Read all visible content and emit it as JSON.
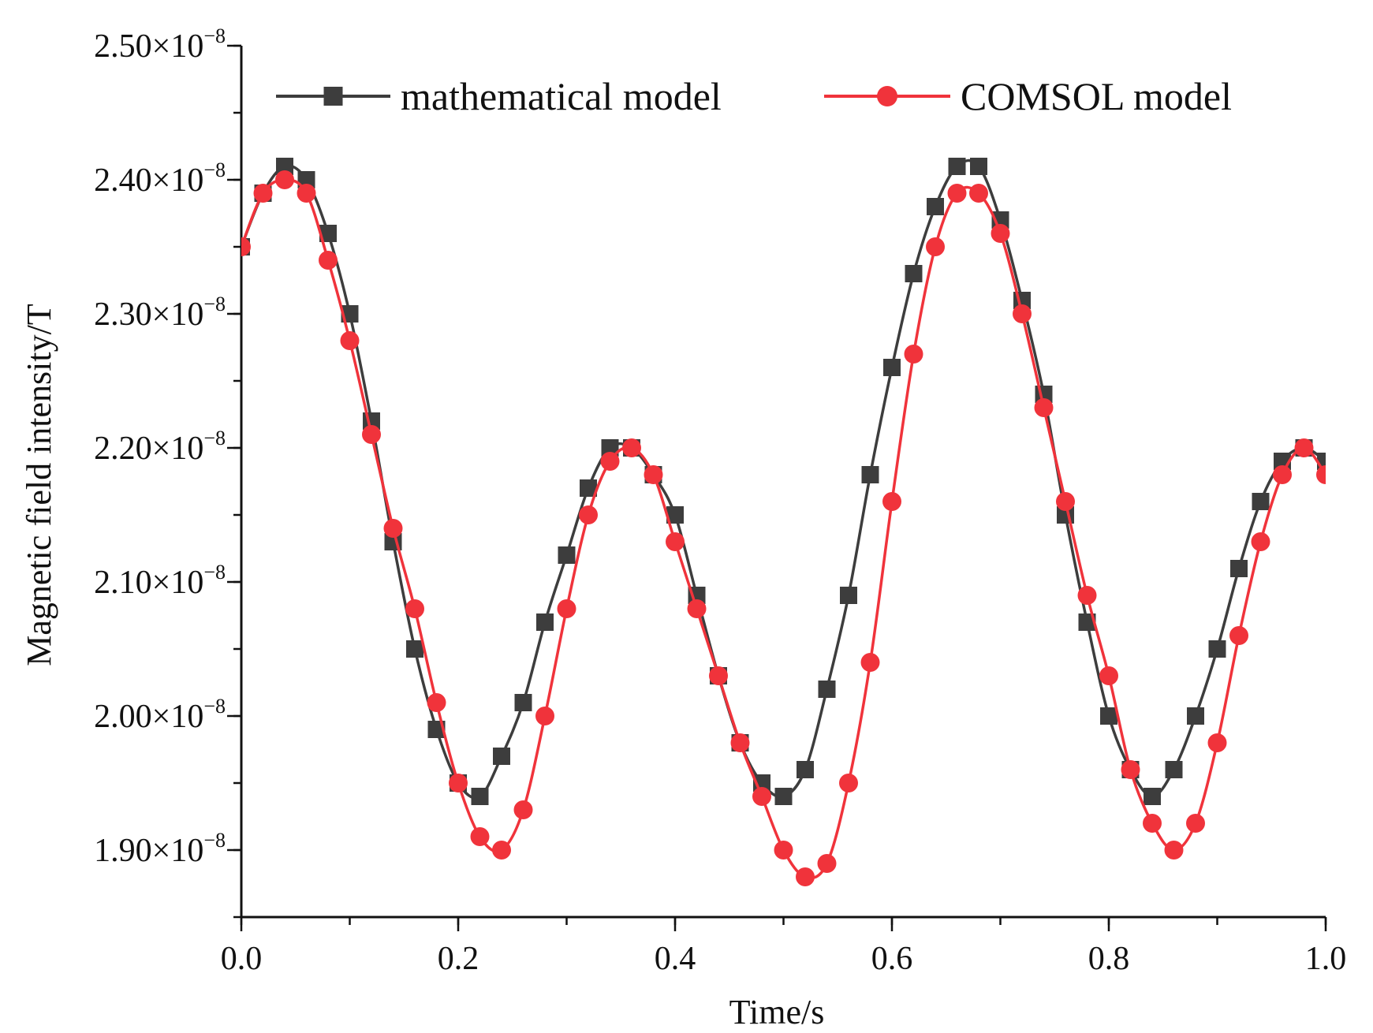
{
  "chart_data": {
    "type": "line",
    "title": "",
    "xlabel": "Time/s",
    "ylabel": "Magnetic field intensity/T",
    "xlim": [
      0.0,
      1.0
    ],
    "ylim": [
      1.85e-08,
      2.5e-08
    ],
    "x_ticks": [
      0.0,
      0.2,
      0.4,
      0.6,
      0.8,
      1.0
    ],
    "x_tick_labels": [
      "0.0",
      "0.2",
      "0.4",
      "0.6",
      "0.8",
      "1.0"
    ],
    "y_ticks": [
      1.9e-08,
      2e-08,
      2.1e-08,
      2.2e-08,
      2.3e-08,
      2.4e-08,
      2.5e-08
    ],
    "y_tick_mantissas": [
      "1.90",
      "2.00",
      "2.10",
      "2.20",
      "2.30",
      "2.40",
      "2.50"
    ],
    "y_tick_multiplier": "×10",
    "y_tick_exponent": "−8",
    "legend_position": "top",
    "x": [
      0.0,
      0.02,
      0.04,
      0.06,
      0.08,
      0.1,
      0.12,
      0.14,
      0.16,
      0.18,
      0.2,
      0.22,
      0.24,
      0.26,
      0.28,
      0.3,
      0.32,
      0.34,
      0.36,
      0.38,
      0.4,
      0.42,
      0.44,
      0.46,
      0.48,
      0.5,
      0.52,
      0.54,
      0.56,
      0.58,
      0.6,
      0.62,
      0.64,
      0.66,
      0.68,
      0.7,
      0.72,
      0.74,
      0.76,
      0.78,
      0.8,
      0.82,
      0.84,
      0.86,
      0.88,
      0.9,
      0.92,
      0.94,
      0.96,
      0.98,
      1.0
    ],
    "series": [
      {
        "name": "mathematical model",
        "color": "#3d3d3d",
        "marker": "square",
        "values": [
          2.35e-08,
          2.39e-08,
          2.41e-08,
          2.4e-08,
          2.36e-08,
          2.3e-08,
          2.22e-08,
          2.13e-08,
          2.05e-08,
          1.99e-08,
          1.95e-08,
          1.94e-08,
          1.97e-08,
          2.01e-08,
          2.07e-08,
          2.12e-08,
          2.17e-08,
          2.2e-08,
          2.2e-08,
          2.18e-08,
          2.15e-08,
          2.09e-08,
          2.03e-08,
          1.98e-08,
          1.95e-08,
          1.94e-08,
          1.96e-08,
          2.02e-08,
          2.09e-08,
          2.18e-08,
          2.26e-08,
          2.33e-08,
          2.38e-08,
          2.41e-08,
          2.41e-08,
          2.37e-08,
          2.31e-08,
          2.24e-08,
          2.15e-08,
          2.07e-08,
          2e-08,
          1.96e-08,
          1.94e-08,
          1.96e-08,
          2e-08,
          2.05e-08,
          2.11e-08,
          2.16e-08,
          2.19e-08,
          2.2e-08,
          2.19e-08
        ]
      },
      {
        "name": "COMSOL model",
        "color": "#f0333b",
        "marker": "circle",
        "values": [
          2.35e-08,
          2.39e-08,
          2.4e-08,
          2.39e-08,
          2.34e-08,
          2.28e-08,
          2.21e-08,
          2.14e-08,
          2.08e-08,
          2.01e-08,
          1.95e-08,
          1.91e-08,
          1.9e-08,
          1.93e-08,
          2e-08,
          2.08e-08,
          2.15e-08,
          2.19e-08,
          2.2e-08,
          2.18e-08,
          2.13e-08,
          2.08e-08,
          2.03e-08,
          1.98e-08,
          1.94e-08,
          1.9e-08,
          1.88e-08,
          1.89e-08,
          1.95e-08,
          2.04e-08,
          2.16e-08,
          2.27e-08,
          2.35e-08,
          2.39e-08,
          2.39e-08,
          2.36e-08,
          2.3e-08,
          2.23e-08,
          2.16e-08,
          2.09e-08,
          2.03e-08,
          1.96e-08,
          1.92e-08,
          1.9e-08,
          1.92e-08,
          1.98e-08,
          2.06e-08,
          2.13e-08,
          2.18e-08,
          2.2e-08,
          2.18e-08
        ]
      }
    ]
  }
}
